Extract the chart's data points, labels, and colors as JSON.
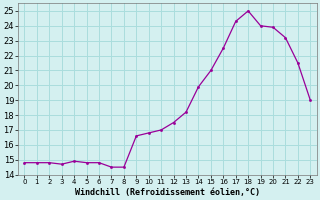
{
  "x": [
    0,
    1,
    2,
    3,
    4,
    5,
    6,
    7,
    8,
    9,
    10,
    11,
    12,
    13,
    14,
    15,
    16,
    17,
    18,
    19,
    20,
    21,
    22,
    23
  ],
  "y": [
    14.8,
    14.8,
    14.8,
    14.7,
    14.9,
    14.8,
    14.8,
    14.5,
    14.5,
    16.6,
    16.8,
    17.0,
    17.5,
    18.2,
    19.9,
    21.0,
    22.5,
    24.3,
    25.0,
    24.0,
    23.9,
    23.2,
    21.5,
    19.0
  ],
  "line_color": "#990099",
  "marker_color": "#990099",
  "bg_color": "#d4f0f0",
  "grid_color": "#aadddd",
  "xlabel": "Windchill (Refroidissement éolien,°C)",
  "ylim": [
    14,
    25.5
  ],
  "yticks": [
    14,
    15,
    16,
    17,
    18,
    19,
    20,
    21,
    22,
    23,
    24,
    25
  ],
  "xlim": [
    -0.5,
    23.5
  ],
  "xticks": [
    0,
    1,
    2,
    3,
    4,
    5,
    6,
    7,
    8,
    9,
    10,
    11,
    12,
    13,
    14,
    15,
    16,
    17,
    18,
    19,
    20,
    21,
    22,
    23
  ],
  "xlabel_fontsize": 6,
  "tick_fontsize": 6
}
